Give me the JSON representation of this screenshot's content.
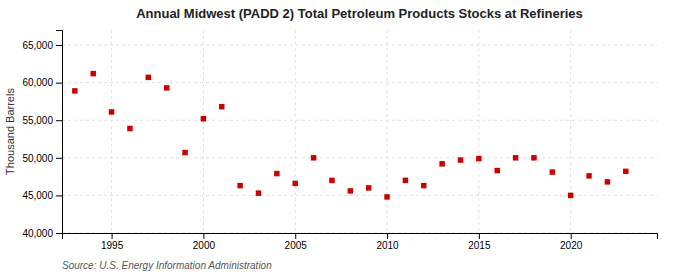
{
  "chart_data": {
    "type": "scatter",
    "title": "Annual Midwest (PADD 2) Total Petroleum Products Stocks at Refineries",
    "ylabel": "Thousand Barrels",
    "annotations": [
      "Source: U.S. Energy Information Administration"
    ],
    "x": [
      1993,
      1994,
      1995,
      1996,
      1997,
      1998,
      1999,
      2000,
      2001,
      2002,
      2003,
      2004,
      2005,
      2006,
      2007,
      2008,
      2009,
      2010,
      2011,
      2012,
      2013,
      2014,
      2015,
      2016,
      2017,
      2018,
      2019,
      2020,
      2021,
      2022,
      2023
    ],
    "values": [
      58900,
      61200,
      56100,
      53900,
      60700,
      59300,
      50700,
      55200,
      56800,
      46300,
      45300,
      47900,
      46600,
      50000,
      47000,
      45600,
      46000,
      44800,
      47000,
      46300,
      49200,
      49700,
      49900,
      48300,
      50000,
      50000,
      48100,
      45000,
      47600,
      46800,
      48200
    ],
    "color": "#cc0000",
    "marker": "square",
    "grid": true,
    "xlim": [
      1992.3,
      2024.7
    ],
    "xticks": [
      1995,
      2000,
      2005,
      2010,
      2015,
      2020
    ],
    "ylim": [
      40000,
      67000
    ],
    "yticks": [
      {
        "value": 40000,
        "label": "40,000"
      },
      {
        "value": 45000,
        "label": "45,000"
      },
      {
        "value": 50000,
        "label": "50,000"
      },
      {
        "value": 55000,
        "label": "55,000"
      },
      {
        "value": 60000,
        "label": "60,000"
      },
      {
        "value": 65000,
        "label": "65,000"
      }
    ]
  }
}
